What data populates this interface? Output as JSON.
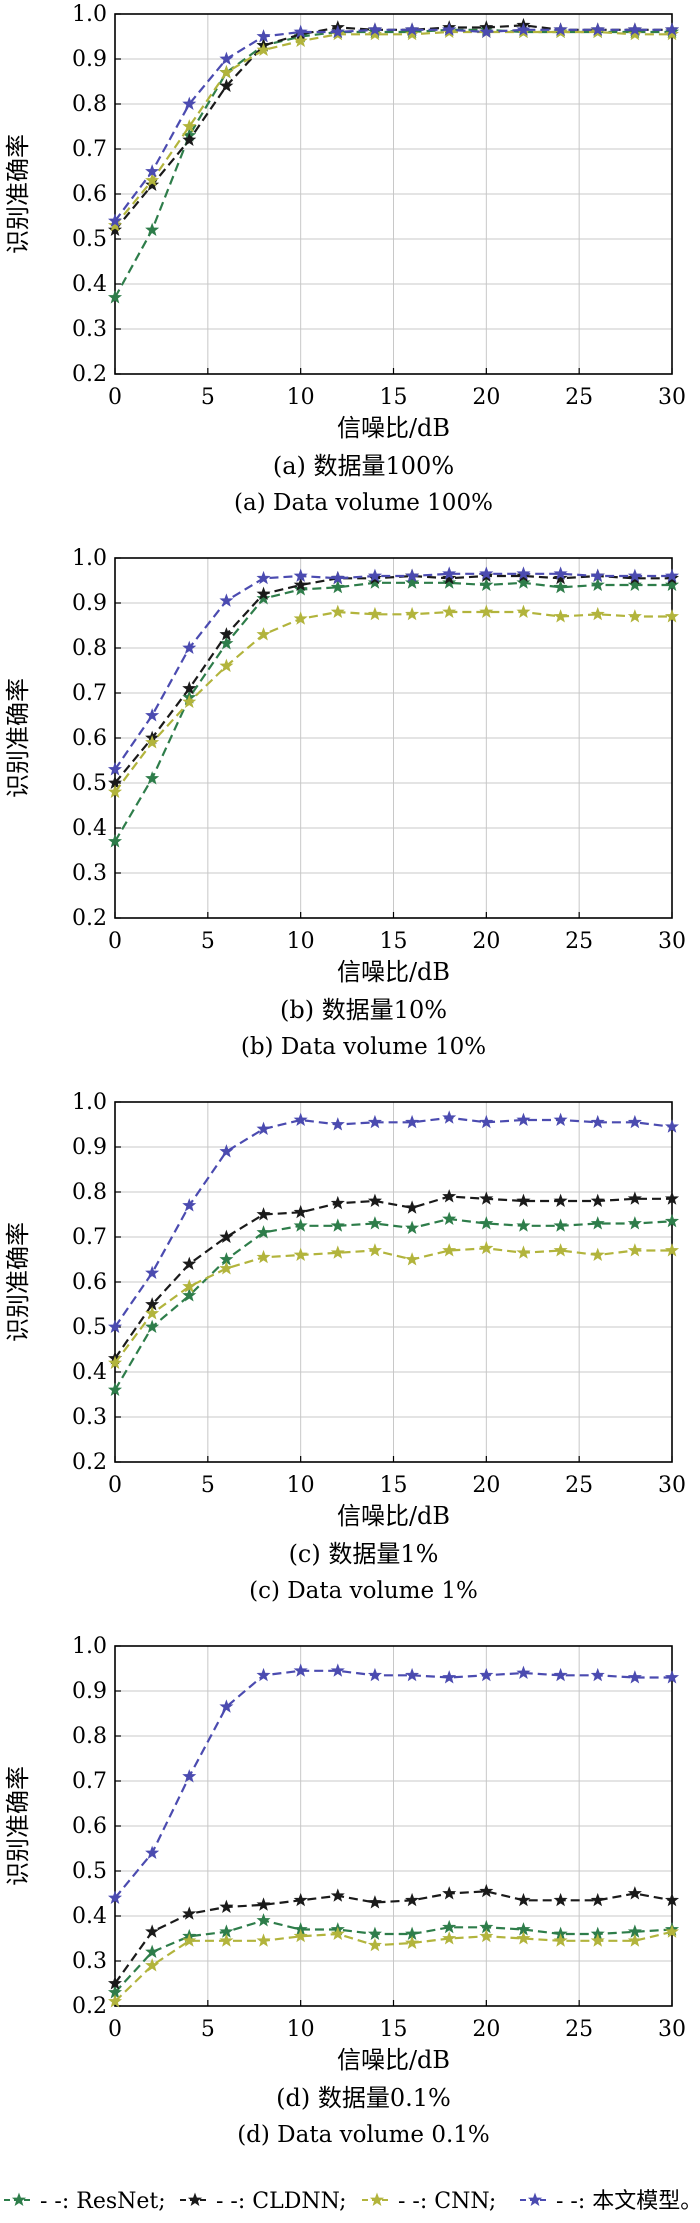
{
  "legend": [
    {
      "marker": "★",
      "label": "- -: ResNet;",
      "color": "#2e7d4a"
    },
    {
      "marker": "★",
      "label": "- -: CLDNN;",
      "color": "#1a1a1a"
    },
    {
      "marker": "★",
      "label": "- -: CNN;",
      "color": "#b2b43c"
    },
    {
      "marker": "★",
      "label": "- -: 本文模型。",
      "color": "#4b4bb0"
    }
  ],
  "chart_data": [
    {
      "type": "line",
      "caption_cn": "(a) 数据量100%",
      "caption_en": "(a) Data volume 100%",
      "xlabel": "信噪比/dB",
      "ylabel": "识别准确率",
      "xlim": [
        0,
        30
      ],
      "ylim": [
        0.2,
        1.0
      ],
      "xticks": [
        "0",
        "5",
        "10",
        "15",
        "20",
        "25",
        "30"
      ],
      "yticks": [
        "0.2",
        "0.3",
        "0.4",
        "0.5",
        "0.6",
        "0.7",
        "0.8",
        "0.9",
        "1.0"
      ],
      "x": [
        0,
        2,
        4,
        6,
        8,
        10,
        12,
        14,
        16,
        18,
        20,
        22,
        24,
        26,
        28,
        30
      ],
      "series": [
        {
          "name": "ResNet",
          "values": [
            0.37,
            0.52,
            0.73,
            0.87,
            0.93,
            0.95,
            0.96,
            0.96,
            0.96,
            0.965,
            0.965,
            0.96,
            0.96,
            0.96,
            0.96,
            0.96
          ]
        },
        {
          "name": "CLDNN",
          "values": [
            0.52,
            0.62,
            0.72,
            0.84,
            0.93,
            0.955,
            0.97,
            0.965,
            0.965,
            0.97,
            0.97,
            0.975,
            0.965,
            0.965,
            0.965,
            0.965
          ]
        },
        {
          "name": "CNN",
          "values": [
            0.53,
            0.63,
            0.75,
            0.87,
            0.92,
            0.94,
            0.955,
            0.955,
            0.955,
            0.96,
            0.96,
            0.96,
            0.96,
            0.96,
            0.955,
            0.955
          ]
        },
        {
          "name": "本文模型",
          "values": [
            0.54,
            0.65,
            0.8,
            0.9,
            0.95,
            0.96,
            0.96,
            0.965,
            0.965,
            0.965,
            0.96,
            0.965,
            0.965,
            0.965,
            0.965,
            0.965
          ]
        }
      ]
    },
    {
      "type": "line",
      "caption_cn": "(b) 数据量10%",
      "caption_en": "(b) Data volume 10%",
      "xlabel": "信噪比/dB",
      "ylabel": "识别准确率",
      "xlim": [
        0,
        30
      ],
      "ylim": [
        0.2,
        1.0
      ],
      "xticks": [
        "0",
        "5",
        "10",
        "15",
        "20",
        "25",
        "30"
      ],
      "yticks": [
        "0.2",
        "0.3",
        "0.4",
        "0.5",
        "0.6",
        "0.7",
        "0.8",
        "0.9",
        "1.0"
      ],
      "x": [
        0,
        2,
        4,
        6,
        8,
        10,
        12,
        14,
        16,
        18,
        20,
        22,
        24,
        26,
        28,
        30
      ],
      "series": [
        {
          "name": "ResNet",
          "values": [
            0.37,
            0.51,
            0.69,
            0.81,
            0.91,
            0.93,
            0.935,
            0.945,
            0.945,
            0.945,
            0.94,
            0.945,
            0.935,
            0.94,
            0.94,
            0.94
          ]
        },
        {
          "name": "CLDNN",
          "values": [
            0.5,
            0.6,
            0.71,
            0.83,
            0.92,
            0.94,
            0.955,
            0.955,
            0.96,
            0.955,
            0.96,
            0.96,
            0.955,
            0.96,
            0.955,
            0.955
          ]
        },
        {
          "name": "CNN",
          "values": [
            0.48,
            0.59,
            0.68,
            0.76,
            0.83,
            0.865,
            0.88,
            0.875,
            0.875,
            0.88,
            0.88,
            0.88,
            0.87,
            0.875,
            0.87,
            0.87
          ]
        },
        {
          "name": "本文模型",
          "values": [
            0.53,
            0.65,
            0.8,
            0.905,
            0.955,
            0.96,
            0.955,
            0.96,
            0.96,
            0.965,
            0.965,
            0.965,
            0.965,
            0.96,
            0.96,
            0.96
          ]
        }
      ]
    },
    {
      "type": "line",
      "caption_cn": "(c) 数据量1%",
      "caption_en": "(c) Data volume 1%",
      "xlabel": "信噪比/dB",
      "ylabel": "识别准确率",
      "xlim": [
        0,
        30
      ],
      "ylim": [
        0.2,
        1.0
      ],
      "xticks": [
        "0",
        "5",
        "10",
        "15",
        "20",
        "25",
        "30"
      ],
      "yticks": [
        "0.2",
        "0.3",
        "0.4",
        "0.5",
        "0.6",
        "0.7",
        "0.8",
        "0.9",
        "1.0"
      ],
      "x": [
        0,
        2,
        4,
        6,
        8,
        10,
        12,
        14,
        16,
        18,
        20,
        22,
        24,
        26,
        28,
        30
      ],
      "series": [
        {
          "name": "ResNet",
          "values": [
            0.36,
            0.5,
            0.57,
            0.65,
            0.71,
            0.725,
            0.725,
            0.73,
            0.72,
            0.74,
            0.73,
            0.725,
            0.725,
            0.73,
            0.73,
            0.735
          ]
        },
        {
          "name": "CLDNN",
          "values": [
            0.43,
            0.55,
            0.64,
            0.7,
            0.75,
            0.755,
            0.775,
            0.78,
            0.765,
            0.79,
            0.785,
            0.78,
            0.78,
            0.78,
            0.785,
            0.785
          ]
        },
        {
          "name": "CNN",
          "values": [
            0.42,
            0.53,
            0.59,
            0.63,
            0.655,
            0.66,
            0.665,
            0.67,
            0.65,
            0.67,
            0.675,
            0.665,
            0.67,
            0.66,
            0.67,
            0.67
          ]
        },
        {
          "name": "本文模型",
          "values": [
            0.5,
            0.62,
            0.77,
            0.89,
            0.94,
            0.96,
            0.95,
            0.955,
            0.955,
            0.965,
            0.955,
            0.96,
            0.96,
            0.955,
            0.955,
            0.945
          ]
        }
      ]
    },
    {
      "type": "line",
      "caption_cn": "(d) 数据量0.1%",
      "caption_en": "(d) Data volume 0.1%",
      "xlabel": "信噪比/dB",
      "ylabel": "识别准确率",
      "xlim": [
        0,
        30
      ],
      "ylim": [
        0.2,
        1.0
      ],
      "xticks": [
        "0",
        "5",
        "10",
        "15",
        "20",
        "25",
        "30"
      ],
      "yticks": [
        "0.2",
        "0.3",
        "0.4",
        "0.5",
        "0.6",
        "0.7",
        "0.8",
        "0.9",
        "1.0"
      ],
      "x": [
        0,
        2,
        4,
        6,
        8,
        10,
        12,
        14,
        16,
        18,
        20,
        22,
        24,
        26,
        28,
        30
      ],
      "series": [
        {
          "name": "ResNet",
          "values": [
            0.23,
            0.32,
            0.355,
            0.365,
            0.39,
            0.37,
            0.37,
            0.36,
            0.36,
            0.375,
            0.375,
            0.37,
            0.36,
            0.36,
            0.365,
            0.37
          ]
        },
        {
          "name": "CLDNN",
          "values": [
            0.25,
            0.365,
            0.405,
            0.42,
            0.425,
            0.435,
            0.445,
            0.43,
            0.435,
            0.45,
            0.455,
            0.435,
            0.435,
            0.435,
            0.45,
            0.435
          ]
        },
        {
          "name": "CNN",
          "values": [
            0.21,
            0.29,
            0.345,
            0.345,
            0.345,
            0.355,
            0.36,
            0.335,
            0.34,
            0.35,
            0.355,
            0.35,
            0.345,
            0.345,
            0.345,
            0.365
          ]
        },
        {
          "name": "本文模型",
          "values": [
            0.44,
            0.54,
            0.71,
            0.865,
            0.935,
            0.945,
            0.945,
            0.935,
            0.935,
            0.93,
            0.935,
            0.94,
            0.935,
            0.935,
            0.93,
            0.93
          ]
        }
      ]
    }
  ]
}
